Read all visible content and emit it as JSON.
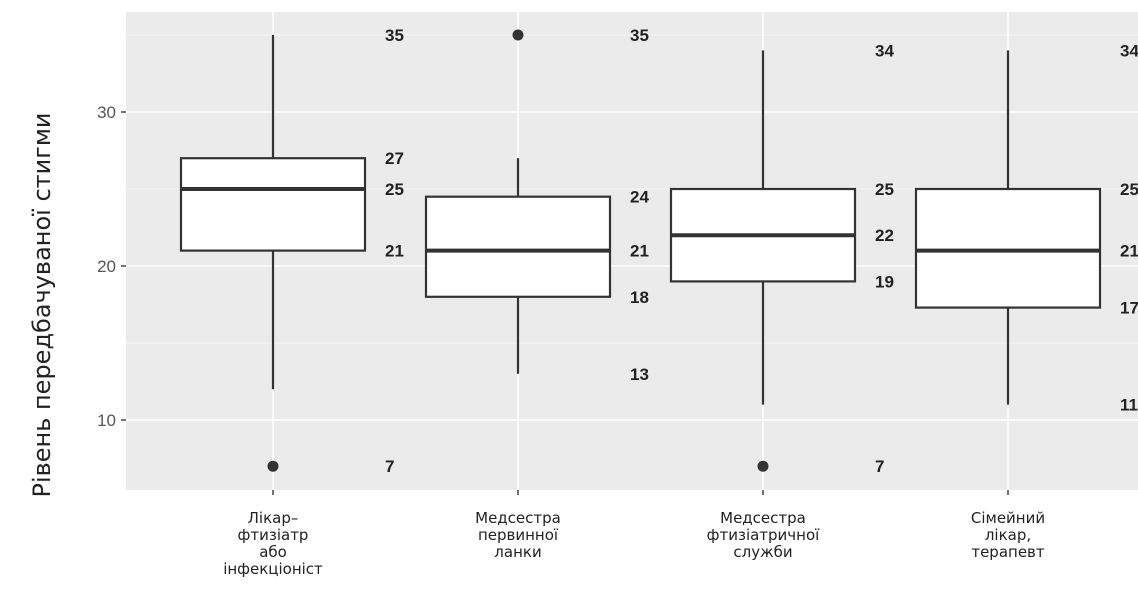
{
  "chart_data": {
    "type": "boxplot",
    "title": "",
    "xlabel": "",
    "ylabel": "Рівень передбачуваної стигми",
    "ylim": [
      5.5,
      37
    ],
    "yticks": [
      10,
      20,
      30
    ],
    "grid": true,
    "categories": [
      [
        "Лікар–",
        "фтизіатр",
        "або",
        "інфекціоніст"
      ],
      [
        "Медсестра",
        "первинної",
        "ланки"
      ],
      [
        "Медсестра",
        "фтизіатричної",
        "служби"
      ],
      [
        "Сімейний",
        "лікар,",
        "терапевт"
      ]
    ],
    "boxes": [
      {
        "q1": 21,
        "median": 25,
        "q3": 27,
        "whisker_low": 12,
        "whisker_high": 35,
        "outliers": [
          7
        ],
        "labels": [
          [
            "35",
            35
          ],
          [
            "27",
            27
          ],
          [
            "25",
            25
          ],
          [
            "21",
            21
          ],
          [
            "7",
            7
          ]
        ]
      },
      {
        "q1": 18,
        "median": 21,
        "q3": 24.5,
        "whisker_low": 13,
        "whisker_high": 27,
        "outliers": [
          35
        ],
        "labels": [
          [
            "35",
            35
          ],
          [
            "24",
            24.5
          ],
          [
            "21",
            21
          ],
          [
            "18",
            18
          ],
          [
            "13",
            13
          ]
        ]
      },
      {
        "q1": 19,
        "median": 22,
        "q3": 25,
        "whisker_low": 11,
        "whisker_high": 34,
        "outliers": [
          7
        ],
        "labels": [
          [
            "34",
            34
          ],
          [
            "25",
            25
          ],
          [
            "22",
            22
          ],
          [
            "19",
            19
          ],
          [
            "7",
            7
          ]
        ]
      },
      {
        "q1": 17.3,
        "median": 21,
        "q3": 25,
        "whisker_low": 11,
        "whisker_high": 34,
        "outliers": [],
        "labels": [
          [
            "34",
            34
          ],
          [
            "25",
            25
          ],
          [
            "21",
            21
          ],
          [
            "17",
            17.3
          ],
          [
            "11",
            11
          ]
        ]
      }
    ]
  },
  "colors": {
    "panel": "#ebebeb",
    "grid_major": "#ffffff",
    "box_fill": "#ffffff",
    "box_stroke": "#333333"
  }
}
